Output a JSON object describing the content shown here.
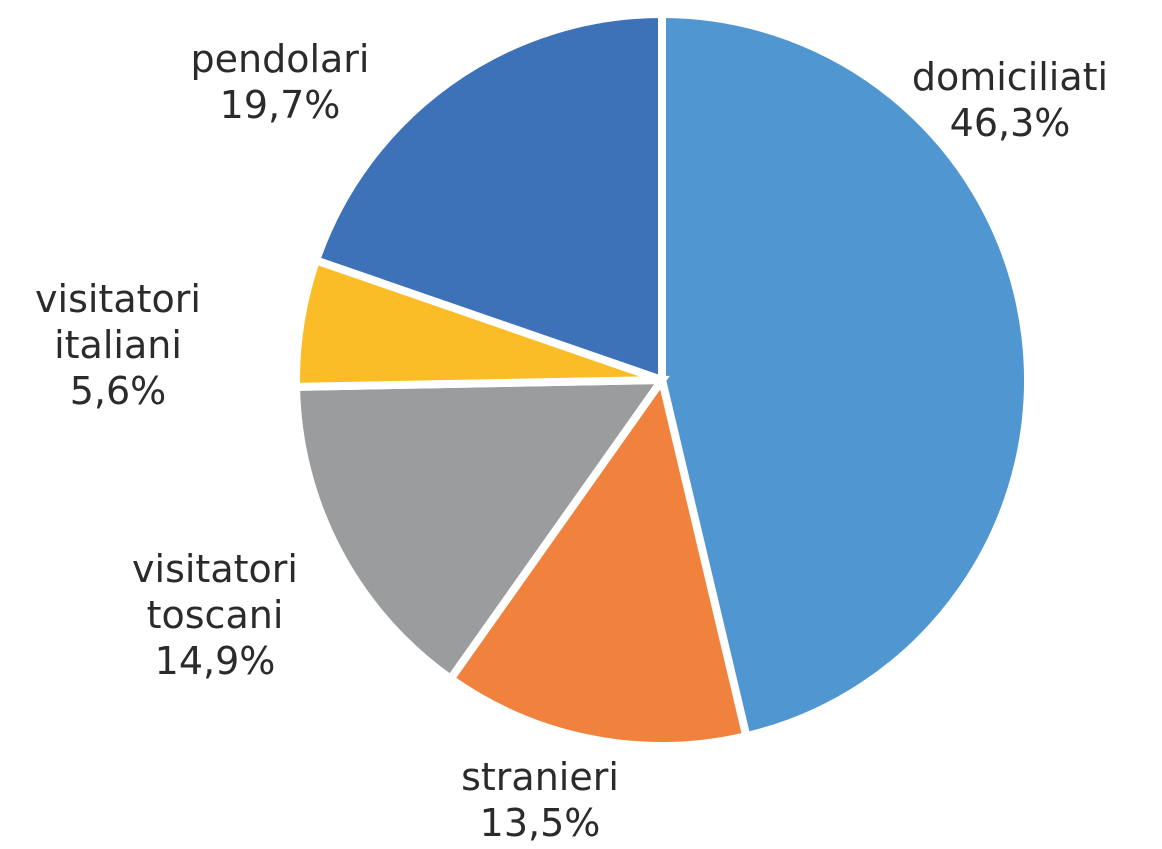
{
  "chart_data": {
    "type": "pie",
    "categories": [
      "domiciliati",
      "stranieri",
      "visitatori toscani",
      "visitatori italiani",
      "pendolari"
    ],
    "values": [
      46.3,
      13.5,
      14.9,
      5.6,
      19.7
    ],
    "value_labels": [
      "46,3%",
      "13,5%",
      "14,9%",
      "5,6%",
      "19,7%"
    ],
    "colors": [
      "#5096d1",
      "#f0823e",
      "#9a9c9d",
      "#fbbd27",
      "#3d72b8"
    ]
  }
}
